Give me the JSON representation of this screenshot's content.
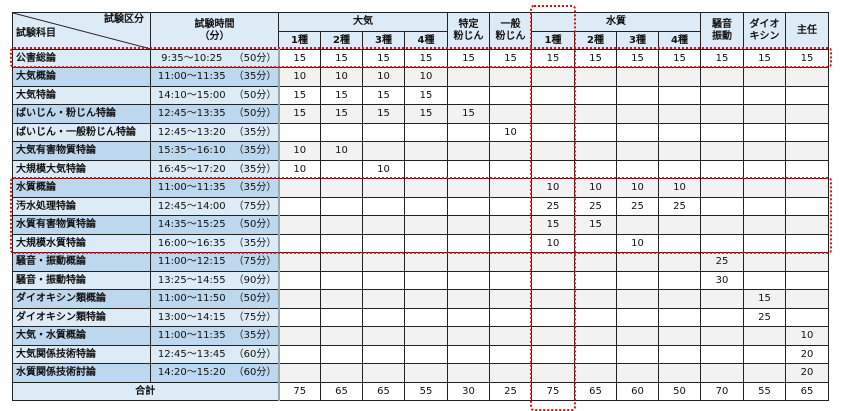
{
  "header": {
    "category_label": "試験区分",
    "subject_label": "試験科目",
    "time_label": "試験時間",
    "time_unit": "（分）",
    "groups": {
      "taiki": "大気",
      "tokutei": [
        "特定",
        "粉じん"
      ],
      "ippan": [
        "一般",
        "粉じん"
      ],
      "suishitsu": "水質",
      "souon": [
        "騒音",
        "振動"
      ],
      "dioxin": [
        "ダイオ",
        "キシン"
      ],
      "shunin": "主任"
    },
    "taiki_sub": [
      "1種",
      "2種",
      "3種",
      "4種"
    ],
    "suishitsu_sub": [
      "1種",
      "2種",
      "3種",
      "4種"
    ]
  },
  "rows": [
    {
      "subject": "公害総論",
      "time": "9:35～10:25",
      "minutes": "（50分）",
      "values": [
        "15",
        "15",
        "15",
        "15",
        "15",
        "15",
        "15",
        "15",
        "15",
        "15",
        "15",
        "15",
        "15"
      ]
    },
    {
      "subject": "大気概論",
      "time": "11:00～11:35",
      "minutes": "（35分）",
      "values": [
        "10",
        "10",
        "10",
        "10",
        "",
        "",
        "",
        "",
        "",
        "",
        "",
        "",
        ""
      ]
    },
    {
      "subject": "大気特論",
      "time": "14:10～15:00",
      "minutes": "（50分）",
      "values": [
        "15",
        "15",
        "15",
        "15",
        "",
        "",
        "",
        "",
        "",
        "",
        "",
        "",
        ""
      ]
    },
    {
      "subject": "ばいじん・粉じん特論",
      "time": "12:45～13:35",
      "minutes": "（50分）",
      "values": [
        "15",
        "15",
        "15",
        "15",
        "15",
        "",
        "",
        "",
        "",
        "",
        "",
        "",
        ""
      ]
    },
    {
      "subject": "ばいじん・一般粉じん特論",
      "time": "12:45～13:20",
      "minutes": "（35分）",
      "values": [
        "",
        "",
        "",
        "",
        "",
        "10",
        "",
        "",
        "",
        "",
        "",
        "",
        ""
      ]
    },
    {
      "subject": "大気有害物質特論",
      "time": "15:35～16:10",
      "minutes": "（35分）",
      "values": [
        "10",
        "10",
        "",
        "",
        "",
        "",
        "",
        "",
        "",
        "",
        "",
        "",
        ""
      ]
    },
    {
      "subject": "大規模大気特論",
      "time": "16:45～17:20",
      "minutes": "（35分）",
      "values": [
        "10",
        "",
        "10",
        "",
        "",
        "",
        "",
        "",
        "",
        "",
        "",
        "",
        ""
      ]
    },
    {
      "subject": "水質概論",
      "time": "11:00～11:35",
      "minutes": "（35分）",
      "values": [
        "",
        "",
        "",
        "",
        "",
        "",
        "10",
        "10",
        "10",
        "10",
        "",
        "",
        ""
      ]
    },
    {
      "subject": "汚水処理特論",
      "time": "12:45～14:00",
      "minutes": "（75分）",
      "values": [
        "",
        "",
        "",
        "",
        "",
        "",
        "25",
        "25",
        "25",
        "25",
        "",
        "",
        ""
      ]
    },
    {
      "subject": "水質有害物質特論",
      "time": "14:35～15:25",
      "minutes": "（50分）",
      "values": [
        "",
        "",
        "",
        "",
        "",
        "",
        "15",
        "15",
        "",
        "",
        "",
        "",
        ""
      ]
    },
    {
      "subject": "大規模水質特論",
      "time": "16:00～16:35",
      "minutes": "（35分）",
      "values": [
        "",
        "",
        "",
        "",
        "",
        "",
        "10",
        "",
        "10",
        "",
        "",
        "",
        ""
      ]
    },
    {
      "subject": "騒音・振動概論",
      "time": "11:00～12:15",
      "minutes": "（75分）",
      "values": [
        "",
        "",
        "",
        "",
        "",
        "",
        "",
        "",
        "",
        "",
        "25",
        "",
        ""
      ]
    },
    {
      "subject": "騒音・振動特論",
      "time": "13:25～14:55",
      "minutes": "（90分）",
      "values": [
        "",
        "",
        "",
        "",
        "",
        "",
        "",
        "",
        "",
        "",
        "30",
        "",
        ""
      ]
    },
    {
      "subject": "ダイオキシン類概論",
      "time": "11:00～11:50",
      "minutes": "（50分）",
      "values": [
        "",
        "",
        "",
        "",
        "",
        "",
        "",
        "",
        "",
        "",
        "",
        "15",
        ""
      ]
    },
    {
      "subject": "ダイオキシン類特論",
      "time": "13:00～14:15",
      "minutes": "（75分）",
      "values": [
        "",
        "",
        "",
        "",
        "",
        "",
        "",
        "",
        "",
        "",
        "",
        "25",
        ""
      ]
    },
    {
      "subject": "大気・水質概論",
      "time": "11:00～11:35",
      "minutes": "（35分）",
      "values": [
        "",
        "",
        "",
        "",
        "",
        "",
        "",
        "",
        "",
        "",
        "",
        "",
        "10"
      ]
    },
    {
      "subject": "大気関係技術特論",
      "time": "12:45～13:45",
      "minutes": "（60分）",
      "values": [
        "",
        "",
        "",
        "",
        "",
        "",
        "",
        "",
        "",
        "",
        "",
        "",
        "20"
      ]
    },
    {
      "subject": "水質関係技術討論",
      "time": "14:20～15:20",
      "minutes": "（60分）",
      "values": [
        "",
        "",
        "",
        "",
        "",
        "",
        "",
        "",
        "",
        "",
        "",
        "",
        "20"
      ]
    }
  ],
  "total": {
    "label": "合計",
    "values": [
      "75",
      "65",
      "65",
      "55",
      "30",
      "25",
      "75",
      "65",
      "60",
      "50",
      "70",
      "55",
      "65"
    ]
  },
  "colors": {
    "highlight": "#e01010",
    "header_bg": "#ddebf7",
    "subject_dark": "#bdd7ee"
  }
}
